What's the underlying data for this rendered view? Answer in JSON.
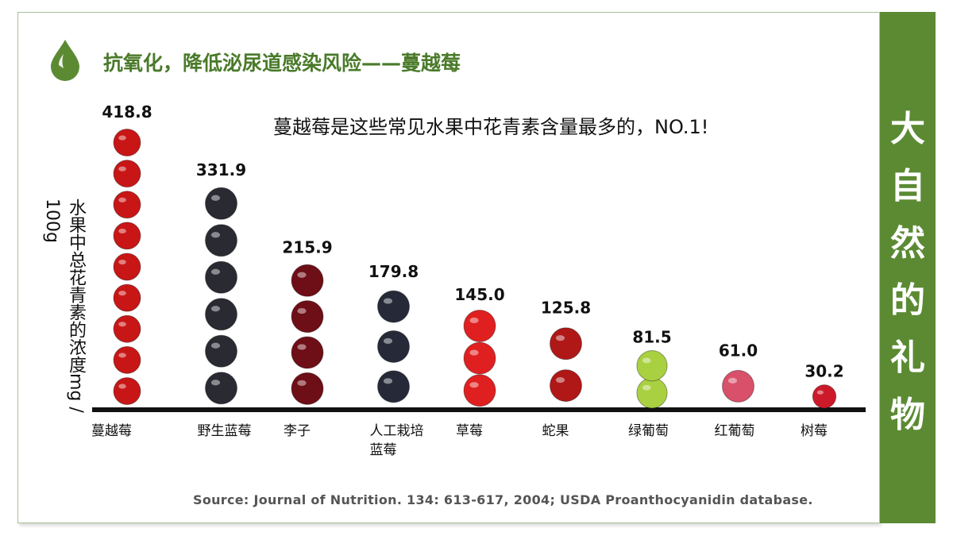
{
  "header": {
    "title": "抗氧化，降低泌尿道感染风险——蔓越莓",
    "icon": "water-drop-icon",
    "accent": "#5b8a33"
  },
  "sidebar": {
    "text": "大自然的礼物",
    "background": "#5b8a33"
  },
  "chart_data": {
    "type": "bar",
    "title": "蔓越莓是这些常见水果中花青素含量最多的，NO.1!",
    "ylabel": "水果中总花青素的浓度mg / 100g",
    "categories": [
      "蔓越莓",
      "野生蓝莓",
      "李子",
      "人工栽培蓝莓",
      "草莓",
      "蛇果",
      "绿葡萄",
      "红葡萄",
      "树莓"
    ],
    "values": [
      418.8,
      331.9,
      215.9,
      179.8,
      145.0,
      125.8,
      81.5,
      61.0,
      30.2
    ],
    "value_labels": [
      "418.8",
      "331.9",
      "215.9",
      "179.8",
      "145.0",
      "125.8",
      "81.5",
      "61.0",
      "30.2"
    ],
    "fruit_colors": [
      "#c81616",
      "#2a2a32",
      "#6e0e16",
      "#262a38",
      "#e02020",
      "#b01818",
      "#a8d040",
      "#d8506a",
      "#cc1a2a"
    ],
    "grid": false,
    "source": "Source: Journal of Nutrition. 134: 613-617, 2004; USDA Proanthocyanidin database."
  }
}
